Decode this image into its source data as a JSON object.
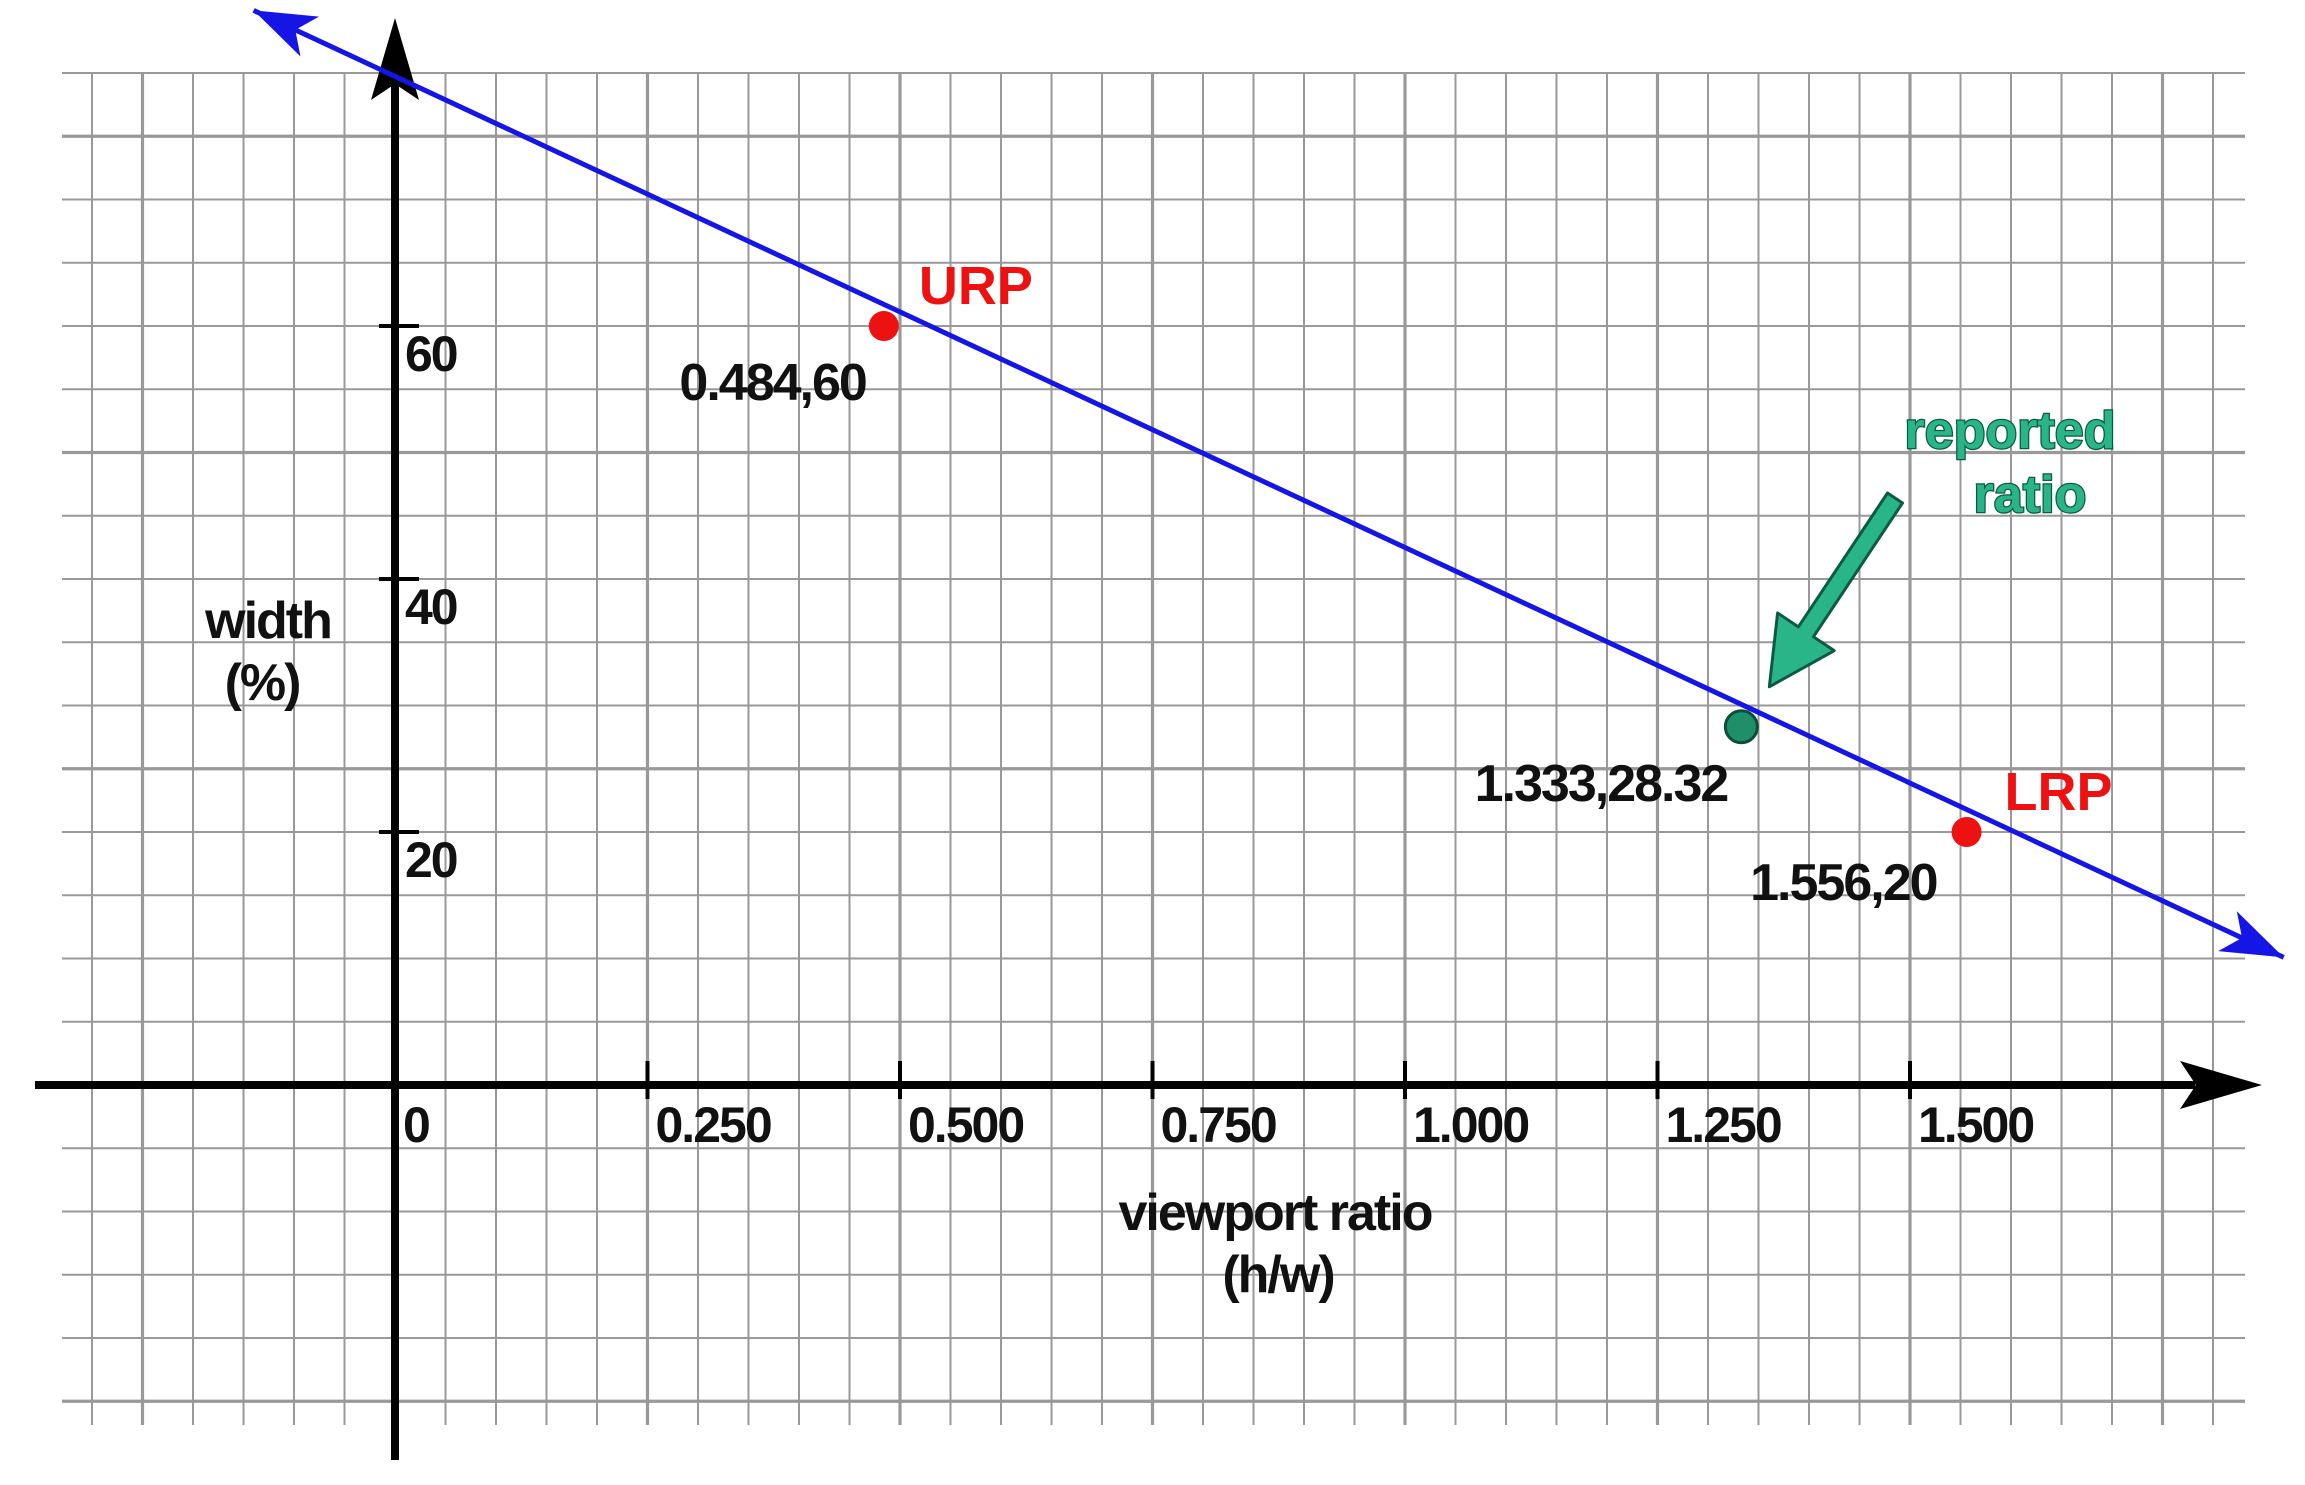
{
  "chart_data": {
    "type": "line",
    "title": "",
    "xlabel_lines": [
      "viewport ratio",
      "(h/w)"
    ],
    "ylabel_lines": [
      "width",
      "(%)"
    ],
    "x_ticks": [
      0,
      0.25,
      0.5,
      0.75,
      1.0,
      1.25,
      1.5
    ],
    "x_tick_labels": [
      "0",
      "0.250",
      "0.500",
      "0.750",
      "1.000",
      "1.250",
      "1.500"
    ],
    "y_ticks": [
      20,
      40,
      60
    ],
    "y_tick_labels": [
      "20",
      "40",
      "60"
    ],
    "xlim": [
      -0.36,
      1.85
    ],
    "ylim": [
      -29,
      85
    ],
    "grid": true,
    "line": {
      "color": "#1515e6",
      "x": [
        -0.14,
        1.87
      ],
      "y": [
        84.95,
        10.09
      ],
      "arrows": "both"
    },
    "points": [
      {
        "name": "URP",
        "x": 0.484,
        "y": 60,
        "label": "0.484,60",
        "color": "#ee1111"
      },
      {
        "name": "reported ratio",
        "x": 1.333,
        "y": 28.32,
        "label": "1.333,28.32",
        "color": "#1a8a66"
      },
      {
        "name": "LRP",
        "x": 1.556,
        "y": 20,
        "label": "1.556,20",
        "color": "#ee1111"
      }
    ],
    "annotations": {
      "urp": "URP",
      "lrp": "LRP",
      "reported_lines": [
        "reported",
        "ratio"
      ]
    },
    "colors": {
      "grid": "#999999",
      "axis": "#000000",
      "line": "#1515e6",
      "key_point": "#ee1111",
      "reported": "#1a8a66",
      "reported_fill": "#1f8f6a"
    }
  }
}
